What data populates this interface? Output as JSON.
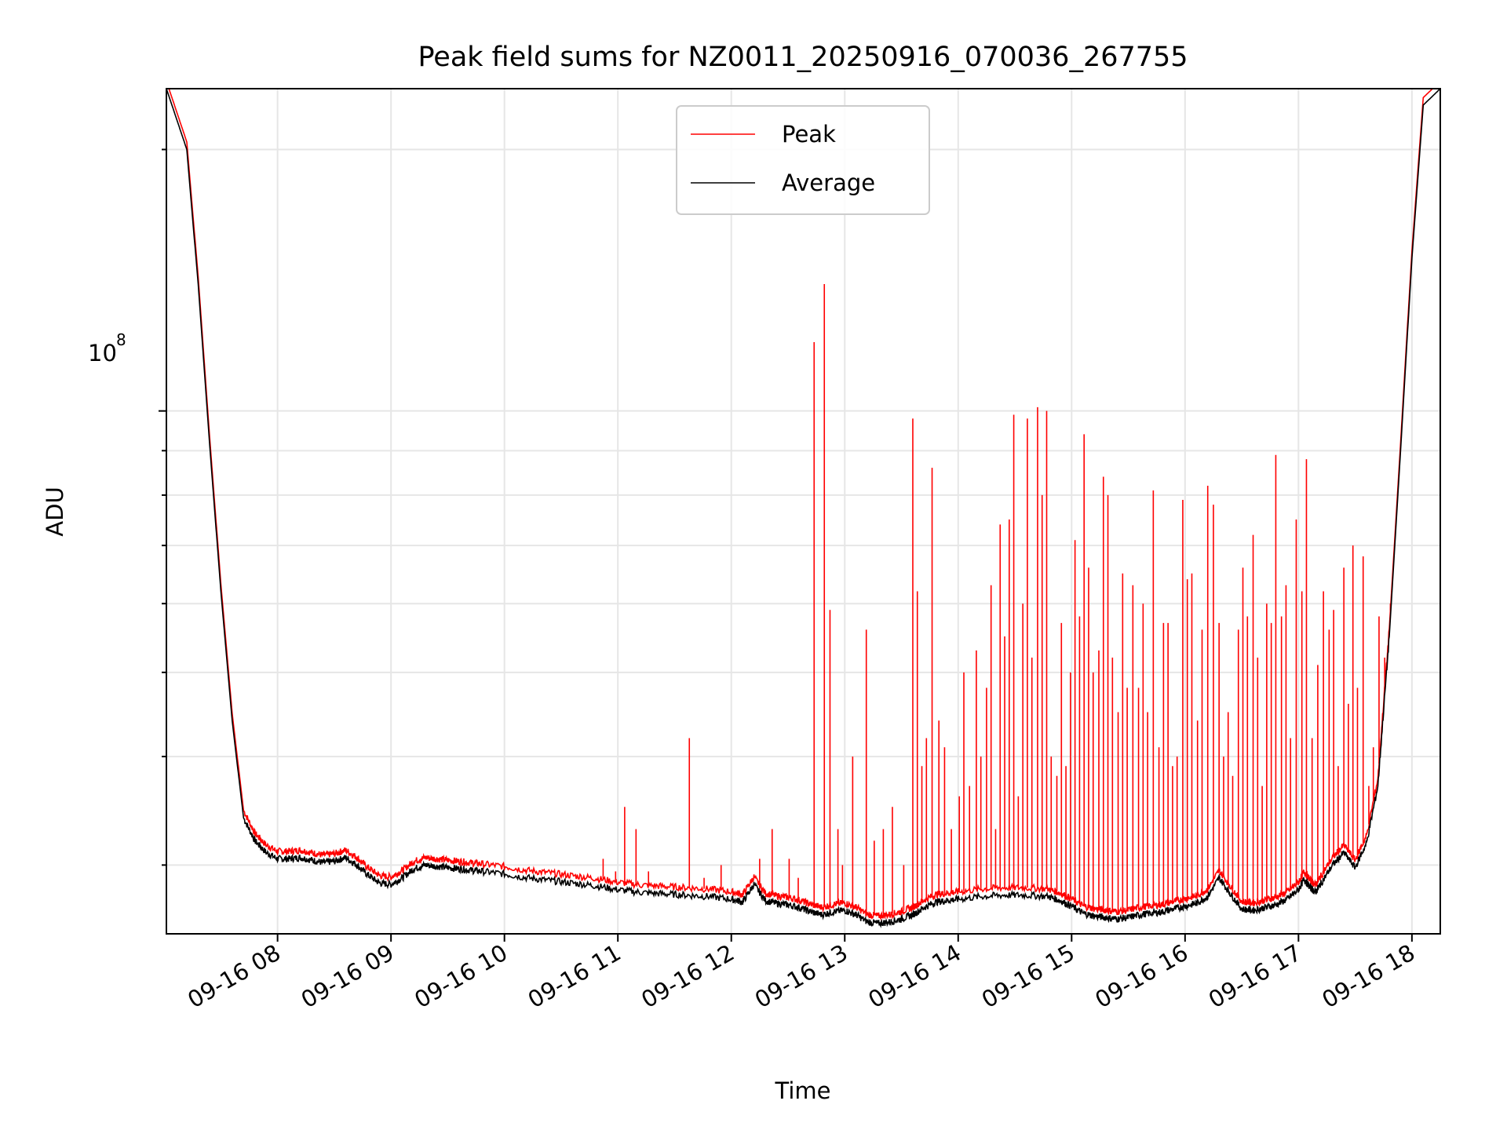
{
  "chart_data": {
    "type": "line",
    "title": "Peak field sums for NZ0011_20250916_070036_267755",
    "xlabel": "Time",
    "ylabel": "ADU",
    "yscale": "log",
    "y_major_tick_label": "10",
    "y_major_tick_exponent": "8",
    "x_tick_labels": [
      "09-16 08",
      "09-16 09",
      "09-16 10",
      "09-16 11",
      "09-16 12",
      "09-16 13",
      "09-16 14",
      "09-16 15",
      "09-16 16",
      "09-16 17",
      "09-16 18"
    ],
    "x_tick_hours": [
      8,
      9,
      10,
      11,
      12,
      13,
      14,
      15,
      16,
      17,
      18
    ],
    "xlim": [
      7.02,
      18.25
    ],
    "ylim": [
      25000000,
      235000000
    ],
    "grid": true,
    "legend_position": "upper center",
    "colors": {
      "Peak": "#ff0000",
      "Average": "#000000"
    },
    "average_series": {
      "name": "Average",
      "x": [
        7.02,
        7.2,
        7.3,
        7.4,
        7.5,
        7.6,
        7.7,
        7.8,
        7.9,
        8.0,
        8.1,
        8.2,
        8.3,
        8.4,
        8.5,
        8.6,
        8.7,
        8.8,
        8.9,
        9.0,
        9.1,
        9.2,
        9.3,
        9.4,
        9.5,
        9.6,
        9.7,
        9.8,
        10.0,
        10.2,
        10.4,
        10.6,
        10.8,
        11.0,
        11.2,
        11.4,
        11.6,
        11.8,
        12.0,
        12.1,
        12.2,
        12.3,
        12.4,
        12.5,
        12.6,
        12.7,
        12.8,
        12.9,
        13.0,
        13.1,
        13.2,
        13.3,
        13.4,
        13.5,
        13.6,
        13.7,
        13.8,
        13.9,
        14.0,
        14.2,
        14.4,
        14.6,
        14.8,
        14.9,
        15.0,
        15.1,
        15.2,
        15.3,
        15.4,
        15.5,
        15.6,
        15.7,
        15.8,
        15.9,
        16.0,
        16.1,
        16.2,
        16.3,
        16.4,
        16.5,
        16.6,
        16.7,
        16.8,
        16.9,
        17.0,
        17.05,
        17.1,
        17.15,
        17.2,
        17.3,
        17.4,
        17.5,
        17.6,
        17.7,
        17.8,
        17.9,
        18.0,
        18.1,
        18.25
      ],
      "y": [
        235000000,
        200000000,
        140000000,
        92000000,
        62000000,
        44000000,
        34000000,
        32000000,
        31000000,
        30500000,
        30500000,
        30600000,
        30400000,
        30200000,
        30300000,
        30600000,
        30000000,
        29200000,
        28600000,
        28500000,
        29000000,
        29700000,
        30000000,
        29900000,
        29800000,
        29700000,
        29600000,
        29500000,
        29300000,
        29000000,
        28800000,
        28600000,
        28400000,
        28100000,
        27900000,
        27800000,
        27700000,
        27600000,
        27400000,
        27200000,
        28500000,
        27300000,
        27100000,
        27000000,
        26800000,
        26500000,
        26300000,
        26500000,
        26600000,
        26300000,
        25800000,
        25700000,
        25800000,
        26000000,
        26300000,
        26800000,
        27200000,
        27300000,
        27400000,
        27600000,
        27700000,
        27700000,
        27600000,
        27300000,
        26900000,
        26400000,
        26200000,
        26100000,
        26000000,
        26100000,
        26300000,
        26400000,
        26500000,
        26700000,
        26900000,
        27100000,
        27600000,
        29000000,
        27800000,
        26700000,
        26600000,
        26800000,
        27000000,
        27400000,
        28100000,
        28900000,
        28300000,
        27900000,
        28600000,
        30000000,
        31000000,
        29800000,
        31800000,
        37000000,
        55000000,
        90000000,
        150000000,
        225000000,
        235000000
      ]
    },
    "peak_spikes": {
      "name": "Peak",
      "x": [
        10.87,
        10.98,
        11.06,
        11.16,
        11.27,
        11.63,
        11.76,
        11.91,
        12.25,
        12.36,
        12.51,
        12.59,
        12.73,
        12.82,
        12.87,
        12.94,
        12.98,
        13.07,
        13.19,
        13.26,
        13.34,
        13.42,
        13.52,
        13.6,
        13.64,
        13.68,
        13.72,
        13.77,
        13.83,
        13.88,
        13.94,
        14.01,
        14.05,
        14.1,
        14.16,
        14.2,
        14.25,
        14.29,
        14.33,
        14.37,
        14.41,
        14.45,
        14.49,
        14.53,
        14.57,
        14.61,
        14.65,
        14.7,
        14.74,
        14.78,
        14.82,
        14.87,
        14.91,
        14.95,
        14.99,
        15.03,
        15.07,
        15.11,
        15.15,
        15.19,
        15.24,
        15.28,
        15.32,
        15.36,
        15.41,
        15.45,
        15.49,
        15.54,
        15.59,
        15.63,
        15.67,
        15.72,
        15.77,
        15.81,
        15.85,
        15.89,
        15.93,
        15.98,
        16.02,
        16.06,
        16.11,
        16.15,
        16.2,
        16.25,
        16.3,
        16.34,
        16.38,
        16.42,
        16.47,
        16.51,
        16.55,
        16.6,
        16.64,
        16.68,
        16.72,
        16.76,
        16.8,
        16.85,
        16.89,
        16.93,
        16.98,
        17.03,
        17.07,
        17.12,
        17.17,
        17.22,
        17.27,
        17.31,
        17.35,
        17.4,
        17.44,
        17.48,
        17.52,
        17.57,
        17.62,
        17.66,
        17.71,
        17.76,
        17.81
      ],
      "y": [
        30500000,
        29500000,
        35000000,
        33000000,
        29500000,
        42000000,
        29000000,
        30000000,
        30500000,
        33000000,
        30500000,
        29000000,
        120000000,
        140000000,
        59000000,
        33000000,
        30000000,
        40000000,
        56000000,
        32000000,
        33000000,
        35000000,
        30000000,
        98000000,
        62000000,
        39000000,
        42000000,
        86000000,
        44000000,
        41000000,
        33000000,
        36000000,
        50000000,
        37000000,
        53000000,
        40000000,
        48000000,
        63000000,
        33000000,
        74000000,
        55000000,
        75000000,
        99000000,
        36000000,
        60000000,
        98000000,
        52000000,
        101000000,
        80000000,
        100000000,
        40000000,
        38000000,
        57000000,
        39000000,
        50000000,
        71000000,
        58000000,
        94000000,
        66000000,
        50000000,
        53000000,
        84000000,
        80000000,
        52000000,
        45000000,
        65000000,
        48000000,
        63000000,
        48000000,
        60000000,
        45000000,
        81000000,
        41000000,
        57000000,
        57000000,
        39000000,
        40000000,
        79000000,
        64000000,
        65000000,
        44000000,
        56000000,
        82000000,
        78000000,
        57000000,
        40000000,
        45000000,
        38000000,
        56000000,
        66000000,
        58000000,
        72000000,
        52000000,
        37000000,
        60000000,
        57000000,
        89000000,
        58000000,
        63000000,
        42000000,
        75000000,
        62000000,
        88000000,
        42000000,
        51000000,
        62000000,
        56000000,
        59000000,
        39000000,
        66000000,
        46000000,
        70000000,
        48000000,
        68000000,
        37000000,
        41000000,
        58000000,
        52000000,
        60000000
      ]
    },
    "legend": [
      "Peak",
      "Average"
    ]
  }
}
